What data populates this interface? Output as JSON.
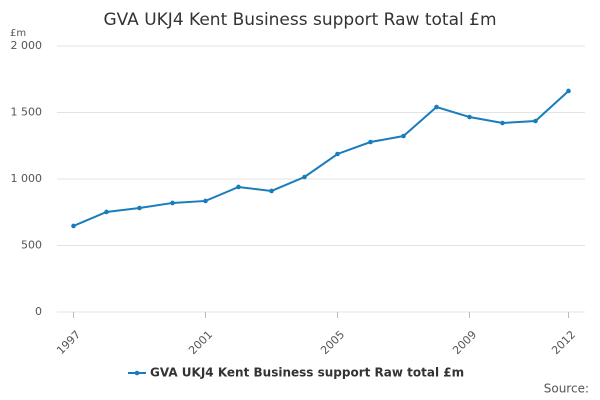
{
  "chart_data": {
    "type": "line",
    "title": "GVA UKJ4 Kent Business support Raw total £m",
    "y_label": "£m",
    "source": "Source:",
    "x": [
      1997,
      1998,
      1999,
      2000,
      2001,
      2002,
      2003,
      2004,
      2005,
      2006,
      2007,
      2008,
      2009,
      2010,
      2011,
      2012
    ],
    "series": [
      {
        "name": "GVA UKJ4 Kent Business support Raw total £m",
        "color": "#1a7dbb",
        "values": [
          647,
          752,
          782,
          820,
          835,
          940,
          910,
          1015,
          1188,
          1278,
          1323,
          1541,
          1466,
          1421,
          1436,
          1662
        ]
      }
    ],
    "xlim": [
      1996.5,
      2012.5
    ],
    "xticks": [
      1997,
      2001,
      2005,
      2009,
      2012
    ],
    "ylim": [
      0,
      2000
    ],
    "yticks": [
      0,
      500,
      {
        "value": 1000,
        "label": "1 000"
      },
      {
        "value": 1500,
        "label": "1 500"
      },
      {
        "value": 2000,
        "label": "2 000"
      }
    ],
    "grid": true,
    "legend": "bottom"
  }
}
